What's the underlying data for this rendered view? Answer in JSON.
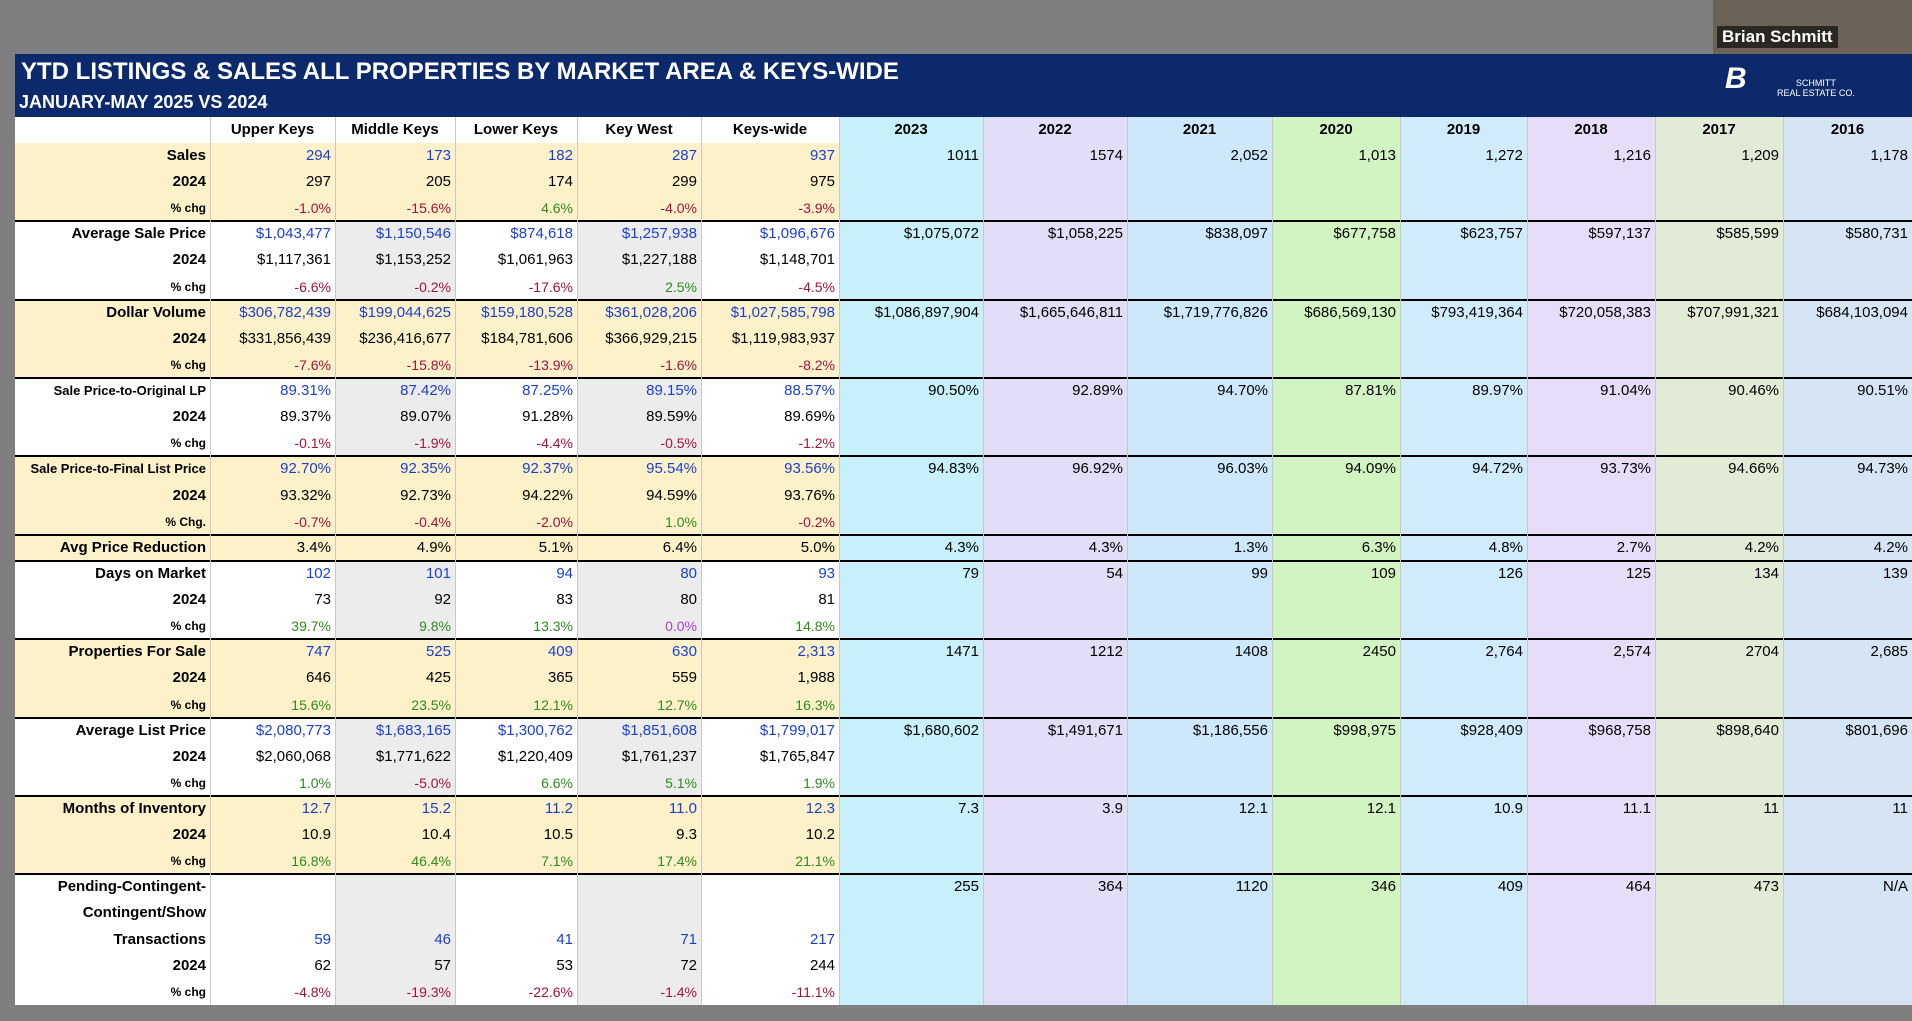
{
  "header": {
    "title": "YTD LISTINGS & SALES ALL PROPERTIES BY MARKET AREA & KEYS-WIDE",
    "subtitle": "JANUARY-MAY 2025 VS 2024",
    "presenter": "Brian Schmitt",
    "logo": [
      "SCHMITT",
      "REAL ESTATE CO."
    ]
  },
  "table": {
    "columns": [
      "Upper Keys",
      "Middle Keys",
      "Lower Keys",
      "Key West",
      "Keys-wide"
    ],
    "history_columns": [
      {
        "name": "2023",
        "color": "#c8f0fb"
      },
      {
        "name": "2022",
        "color": "#e4ddf7"
      },
      {
        "name": "2021",
        "color": "#cde8fb"
      },
      {
        "name": "2020",
        "color": "#d2f4c3"
      },
      {
        "name": "2019",
        "color": "#d0ebfb"
      },
      {
        "name": "2018",
        "color": "#e8ddf8"
      },
      {
        "name": "2017",
        "color": "#e2ebd5"
      },
      {
        "name": "2016",
        "color": "#d6e5f6"
      }
    ],
    "stripe_color": "#ececec",
    "positive_color": "#2e8b1e",
    "negative_color": "#a3113c",
    "zero_color": "#a23fe0",
    "groups": [
      {
        "fill": "#fdf1c9",
        "rows": [
          {
            "label": "Sales",
            "color": "#1a3fd0",
            "values": [
              "294",
              "173",
              "182",
              "287",
              "937"
            ],
            "history": [
              "1011",
              "1574",
              "2,052",
              "1,013",
              "1,272",
              "1,216",
              "1,209",
              "1,178"
            ]
          },
          {
            "label": "2024",
            "color": "#000000",
            "values": [
              "297",
              "205",
              "174",
              "299",
              "975"
            ]
          },
          {
            "label": "% chg",
            "values": [
              "-1.0%",
              "-15.6%",
              "4.6%",
              "-4.0%",
              "-3.9%"
            ]
          }
        ]
      },
      {
        "fill": "#ffffff",
        "rows": [
          {
            "label": "Average Sale Price",
            "color": "#1a3fd0",
            "values": [
              "$1,043,477",
              "$1,150,546",
              "$874,618",
              "$1,257,938",
              "$1,096,676"
            ],
            "history": [
              "$1,075,072",
              "$1,058,225",
              "$838,097",
              "$677,758",
              "$623,757",
              "$597,137",
              "$585,599",
              "$580,731"
            ]
          },
          {
            "label": "2024",
            "color": "#000000",
            "values": [
              "$1,117,361",
              "$1,153,252",
              "$1,061,963",
              "$1,227,188",
              "$1,148,701"
            ]
          },
          {
            "label": "% chg",
            "values": [
              "-6.6%",
              "-0.2%",
              "-17.6%",
              "2.5%",
              "-4.5%"
            ]
          }
        ]
      },
      {
        "fill": "#fdf1c9",
        "rows": [
          {
            "label": "Dollar Volume",
            "color": "#1a3fd0",
            "values": [
              "$306,782,439",
              "$199,044,625",
              "$159,180,528",
              "$361,028,206",
              "$1,027,585,798"
            ],
            "history": [
              "$1,086,897,904",
              "$1,665,646,811",
              "$1,719,776,826",
              "$686,569,130",
              "$793,419,364",
              "$720,058,383",
              "$707,991,321",
              "$684,103,094"
            ]
          },
          {
            "label": "2024",
            "color": "#000000",
            "values": [
              "$331,856,439",
              "$236,416,677",
              "$184,781,606",
              "$366,929,215",
              "$1,119,983,937"
            ]
          },
          {
            "label": "% chg",
            "values": [
              "-7.6%",
              "-15.8%",
              "-13.9%",
              "-1.6%",
              "-8.2%"
            ]
          }
        ]
      },
      {
        "fill": "#ffffff",
        "rows": [
          {
            "label": "Sale Price-to-Original LP",
            "color": "#1a3fd0",
            "values": [
              "89.31%",
              "87.42%",
              "87.25%",
              "89.15%",
              "88.57%"
            ],
            "history": [
              "90.50%",
              "92.89%",
              "94.70%",
              "87.81%",
              "89.97%",
              "91.04%",
              "90.46%",
              "90.51%"
            ]
          },
          {
            "label": "2024",
            "color": "#000000",
            "values": [
              "89.37%",
              "89.07%",
              "91.28%",
              "89.59%",
              "89.69%"
            ]
          },
          {
            "label": "% chg",
            "values": [
              "-0.1%",
              "-1.9%",
              "-4.4%",
              "-0.5%",
              "-1.2%"
            ]
          }
        ]
      },
      {
        "fill": "#fdf1c9",
        "rows": [
          {
            "label": "Sale Price-to-Final List Price",
            "color": "#1a3fd0",
            "values": [
              "92.70%",
              "92.35%",
              "92.37%",
              "95.54%",
              "93.56%"
            ],
            "history": [
              "94.83%",
              "96.92%",
              "96.03%",
              "94.09%",
              "94.72%",
              "93.73%",
              "94.66%",
              "94.73%"
            ]
          },
          {
            "label": "2024",
            "color": "#000000",
            "values": [
              "93.32%",
              "92.73%",
              "94.22%",
              "94.59%",
              "93.76%"
            ]
          },
          {
            "label": "% Chg.",
            "values": [
              "-0.7%",
              "-0.4%",
              "-2.0%",
              "1.0%",
              "-0.2%"
            ]
          }
        ]
      },
      {
        "fill": "#fdf1c9",
        "rows": [
          {
            "label": "Avg Price Reduction",
            "color": "#000000",
            "values": [
              "3.4%",
              "4.9%",
              "5.1%",
              "6.4%",
              "5.0%"
            ],
            "history": [
              "4.3%",
              "4.3%",
              "1.3%",
              "6.3%",
              "4.8%",
              "2.7%",
              "4.2%",
              "4.2%"
            ]
          }
        ]
      },
      {
        "fill": "#ffffff",
        "rows": [
          {
            "label": "Days on Market",
            "color": "#1a3fd0",
            "values": [
              "102",
              "101",
              "94",
              "80",
              "93"
            ],
            "history": [
              "79",
              "54",
              "99",
              "109",
              "126",
              "125",
              "134",
              "139"
            ]
          },
          {
            "label": "2024",
            "color": "#000000",
            "values": [
              "73",
              "92",
              "83",
              "80",
              "81"
            ]
          },
          {
            "label": "% chg",
            "values": [
              "39.7%",
              "9.8%",
              "13.3%",
              "0.0%",
              "14.8%"
            ]
          }
        ]
      },
      {
        "fill": "#fdf1c9",
        "rows": [
          {
            "label": "Properties For Sale",
            "color": "#1a3fd0",
            "values": [
              "747",
              "525",
              "409",
              "630",
              "2,313"
            ],
            "history": [
              "1471",
              "1212",
              "1408",
              "2450",
              "2,764",
              "2,574",
              "2704",
              "2,685"
            ]
          },
          {
            "label": "2024",
            "color": "#000000",
            "values": [
              "646",
              "425",
              "365",
              "559",
              "1,988"
            ]
          },
          {
            "label": "% chg",
            "values": [
              "15.6%",
              "23.5%",
              "12.1%",
              "12.7%",
              "16.3%"
            ]
          }
        ]
      },
      {
        "fill": "#ffffff",
        "rows": [
          {
            "label": "Average List Price",
            "color": "#1a3fd0",
            "values": [
              "$2,080,773",
              "$1,683,165",
              "$1,300,762",
              "$1,851,608",
              "$1,799,017"
            ],
            "history": [
              "$1,680,602",
              "$1,491,671",
              "$1,186,556",
              "$998,975",
              "$928,409",
              "$968,758",
              "$898,640",
              "$801,696"
            ]
          },
          {
            "label": "2024",
            "color": "#000000",
            "values": [
              "$2,060,068",
              "$1,771,622",
              "$1,220,409",
              "$1,761,237",
              "$1,765,847"
            ]
          },
          {
            "label": "% chg",
            "values": [
              "1.0%",
              "-5.0%",
              "6.6%",
              "5.1%",
              "1.9%"
            ]
          }
        ]
      },
      {
        "fill": "#fdf1c9",
        "rows": [
          {
            "label": "Months of Inventory",
            "color": "#1a3fd0",
            "values": [
              "12.7",
              "15.2",
              "11.2",
              "11.0",
              "12.3"
            ],
            "history": [
              "7.3",
              "3.9",
              "12.1",
              "12.1",
              "10.9",
              "11.1",
              "11",
              "11"
            ]
          },
          {
            "label": "2024",
            "color": "#000000",
            "values": [
              "10.9",
              "10.4",
              "10.5",
              "9.3",
              "10.2"
            ]
          },
          {
            "label": "% chg",
            "values": [
              "16.8%",
              "46.4%",
              "7.1%",
              "17.4%",
              "21.1%"
            ]
          }
        ]
      },
      {
        "fill": "#ffffff",
        "rows": [
          {
            "label": [
              "Pending-Contingent-",
              "Contingent/Show",
              "Transactions"
            ],
            "color": "#1a3fd0",
            "values": [
              "59",
              "46",
              "41",
              "71",
              "217"
            ],
            "history": [
              "255",
              "364",
              "1120",
              "346",
              "409",
              "464",
              "473",
              "N/A"
            ]
          },
          {
            "label": "2024",
            "color": "#000000",
            "values": [
              "62",
              "57",
              "53",
              "72",
              "244"
            ]
          },
          {
            "label": "% chg",
            "values": [
              "-4.8%",
              "-19.3%",
              "-22.6%",
              "-1.4%",
              "-11.1%"
            ]
          }
        ]
      }
    ]
  }
}
